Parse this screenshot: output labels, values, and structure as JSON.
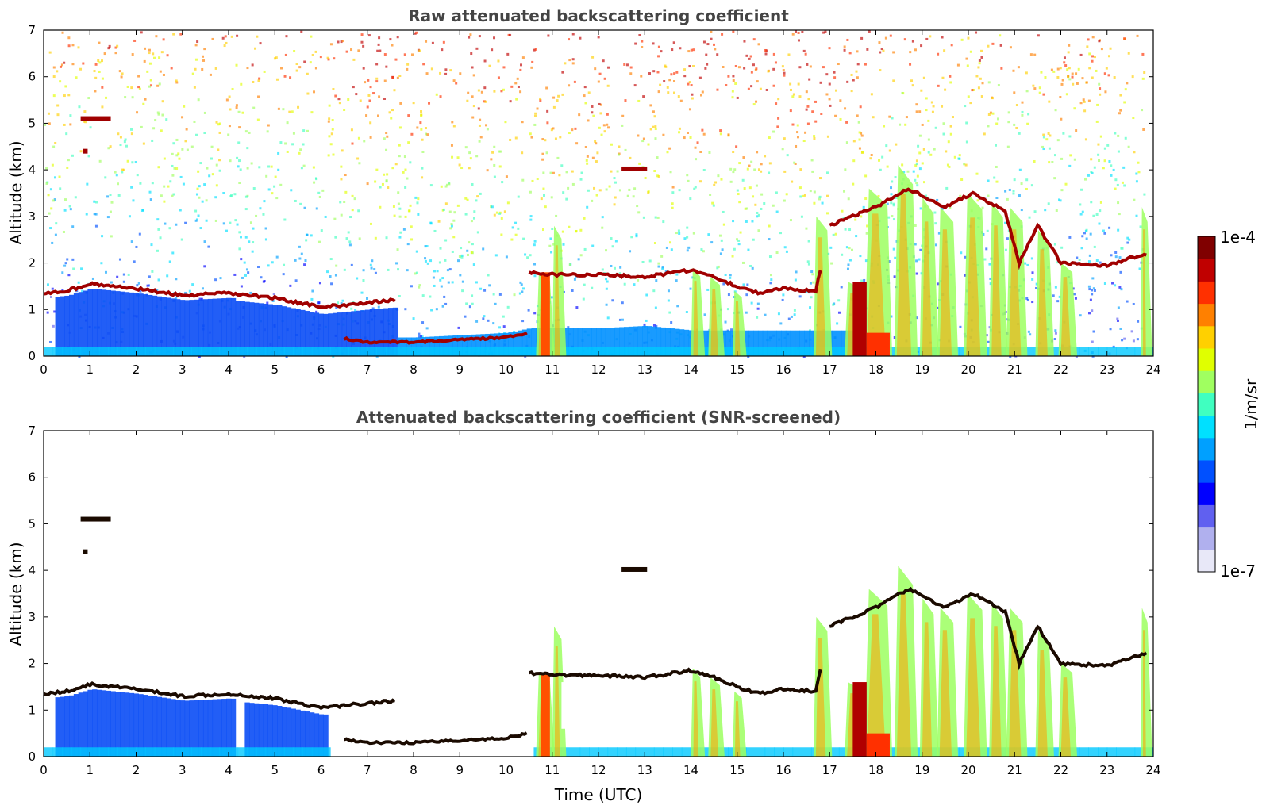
{
  "chart_data": [
    {
      "type": "heatmap",
      "title": "Raw attenuated backscattering coefficient",
      "xlabel": "",
      "ylabel": "Altitude (km)",
      "xlim": [
        0,
        24
      ],
      "ylim": [
        0,
        7
      ],
      "xticks": [
        "0",
        "1",
        "2",
        "3",
        "4",
        "5",
        "6",
        "7",
        "8",
        "9",
        "10",
        "11",
        "12",
        "13",
        "14",
        "15",
        "16",
        "17",
        "18",
        "19",
        "20",
        "21",
        "22",
        "23",
        "24"
      ],
      "yticks": [
        "0",
        "1",
        "2",
        "3",
        "4",
        "5",
        "6",
        "7"
      ],
      "screened": false,
      "layer_top_km": [
        [
          0,
          1.35
        ],
        [
          0.5,
          1.4
        ],
        [
          1,
          1.55
        ],
        [
          2,
          1.45
        ],
        [
          3,
          1.3
        ],
        [
          4,
          1.35
        ],
        [
          5,
          1.25
        ],
        [
          6,
          1.05
        ],
        [
          7,
          1.15
        ],
        [
          7.6,
          1.2
        ],
        [
          10.5,
          1.8
        ],
        [
          11,
          1.75
        ],
        [
          12,
          1.75
        ],
        [
          13,
          1.7
        ],
        [
          14,
          1.85
        ],
        [
          14.5,
          1.7
        ],
        [
          15,
          1.5
        ],
        [
          15.5,
          1.35
        ],
        [
          16,
          1.45
        ],
        [
          16.7,
          1.4
        ],
        [
          17,
          2.8
        ],
        [
          18,
          3.2
        ],
        [
          18.7,
          3.6
        ],
        [
          19.5,
          3.2
        ],
        [
          20.1,
          3.5
        ],
        [
          20.8,
          3.1
        ],
        [
          21.1,
          2.0
        ],
        [
          21.5,
          2.8
        ],
        [
          22,
          2.0
        ],
        [
          23,
          1.95
        ],
        [
          23.8,
          2.2
        ]
      ],
      "boundary_layer_km": [
        [
          0,
          0.4
        ],
        [
          1,
          0.5
        ],
        [
          2,
          0.5
        ],
        [
          3,
          0.45
        ],
        [
          4,
          0.45
        ],
        [
          5,
          0.5
        ],
        [
          6,
          0.45
        ],
        [
          7,
          0.3
        ],
        [
          8,
          0.3
        ],
        [
          9,
          0.35
        ],
        [
          10,
          0.4
        ],
        [
          10.5,
          0.5
        ],
        [
          12,
          0.5
        ],
        [
          13,
          0.55
        ],
        [
          14,
          0.45
        ]
      ],
      "plumes": [
        {
          "t": 10.8,
          "w": 0.3,
          "top": 1.8
        },
        {
          "t": 11.1,
          "w": 0.2,
          "top": 2.8
        },
        {
          "t": 14.1,
          "w": 0.2,
          "top": 1.9
        },
        {
          "t": 14.5,
          "w": 0.25,
          "top": 1.7
        },
        {
          "t": 15.0,
          "w": 0.2,
          "top": 1.4
        },
        {
          "t": 16.8,
          "w": 0.3,
          "top": 3.0
        },
        {
          "t": 17.5,
          "w": 0.35,
          "top": 1.6
        },
        {
          "t": 18.0,
          "w": 0.5,
          "top": 3.6
        },
        {
          "t": 18.6,
          "w": 0.4,
          "top": 4.1
        },
        {
          "t": 19.1,
          "w": 0.3,
          "top": 3.4
        },
        {
          "t": 19.5,
          "w": 0.35,
          "top": 3.2
        },
        {
          "t": 20.1,
          "w": 0.4,
          "top": 3.5
        },
        {
          "t": 20.6,
          "w": 0.3,
          "top": 3.3
        },
        {
          "t": 21.0,
          "w": 0.35,
          "top": 3.2
        },
        {
          "t": 21.6,
          "w": 0.3,
          "top": 2.7
        },
        {
          "t": 22.1,
          "w": 0.3,
          "top": 2.0
        },
        {
          "t": 23.8,
          "w": 0.15,
          "top": 3.2
        }
      ]
    },
    {
      "type": "heatmap",
      "title": "Attenuated backscattering coefficient (SNR-screened)",
      "xlabel": "Time (UTC)",
      "ylabel": "Altitude (km)",
      "xlim": [
        0,
        24
      ],
      "ylim": [
        0,
        7
      ],
      "xticks": [
        "0",
        "1",
        "2",
        "3",
        "4",
        "5",
        "6",
        "7",
        "8",
        "9",
        "10",
        "11",
        "12",
        "13",
        "14",
        "15",
        "16",
        "17",
        "18",
        "19",
        "20",
        "21",
        "22",
        "23",
        "24"
      ],
      "yticks": [
        "0",
        "1",
        "2",
        "3",
        "4",
        "5",
        "6",
        "7"
      ],
      "screened": true
    }
  ],
  "colorbar": {
    "label": "1/m/sr",
    "max_label": "1e-4",
    "min_label": "1e-7",
    "scale": "log",
    "colors": [
      "#e8e8f8",
      "#b0b0ee",
      "#6060f0",
      "#0000ff",
      "#0050ff",
      "#00a0ff",
      "#00e0ff",
      "#40ffc0",
      "#a0ff60",
      "#e0ff00",
      "#ffd000",
      "#ff8000",
      "#ff3000",
      "#c00000",
      "#800000"
    ]
  }
}
